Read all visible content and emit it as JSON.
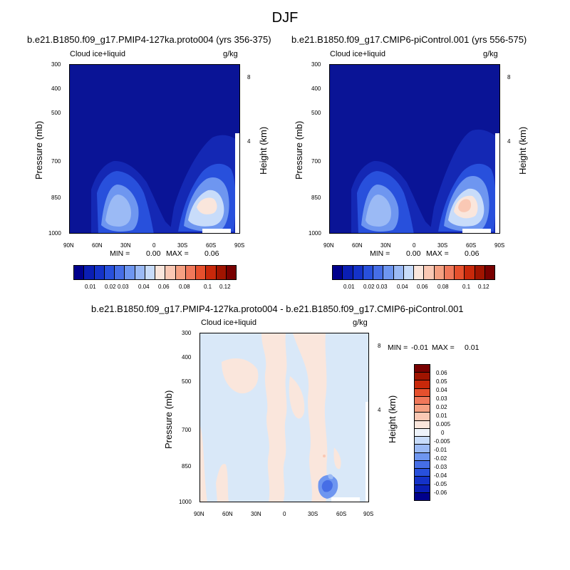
{
  "figure_title": "DJF",
  "chart_data": [
    {
      "type": "heatmap",
      "title": "b.e21.B1850.f09_g17.PMIP4-127ka.proto004 (yrs 356-375)",
      "variable": "Cloud ice+liquid",
      "units": "g/kg",
      "xlabel": "",
      "ylabel": "Pressure (mb)",
      "y2label": "Height (km)",
      "x_ticks": [
        "90N",
        "60N",
        "30N",
        "0",
        "30S",
        "60S",
        "90S"
      ],
      "y_ticks": [
        "300",
        "400",
        "500",
        "700",
        "850",
        "1000"
      ],
      "y2_ticks": [
        "8",
        "4"
      ],
      "min_label": "MIN =",
      "min_value": "0.00",
      "max_label": "MAX =",
      "max_value": "0.06",
      "colorbar_labels": [
        "0.01",
        "0.02",
        "0.03",
        "0.04",
        "0.06",
        "0.08",
        "0.1",
        "0.12"
      ]
    },
    {
      "type": "heatmap",
      "title": "b.e21.B1850.f09_g17.CMIP6-piControl.001 (yrs 556-575)",
      "variable": "Cloud ice+liquid",
      "units": "g/kg",
      "xlabel": "",
      "ylabel": "Pressure (mb)",
      "y2label": "Height (km)",
      "x_ticks": [
        "90N",
        "60N",
        "30N",
        "0",
        "30S",
        "60S",
        "90S"
      ],
      "y_ticks": [
        "300",
        "400",
        "500",
        "700",
        "850",
        "1000"
      ],
      "y2_ticks": [
        "8",
        "4"
      ],
      "min_label": "MIN =",
      "min_value": "0.00",
      "max_label": "MAX =",
      "max_value": "0.06",
      "colorbar_labels": [
        "0.01",
        "0.02",
        "0.03",
        "0.04",
        "0.06",
        "0.08",
        "0.1",
        "0.12"
      ]
    },
    {
      "type": "heatmap",
      "title": "b.e21.B1850.f09_g17.PMIP4-127ka.proto004 - b.e21.B1850.f09_g17.CMIP6-piControl.001",
      "variable": "Cloud ice+liquid",
      "units": "g/kg",
      "xlabel": "",
      "ylabel": "Pressure (mb)",
      "y2label": "Height (km)",
      "x_ticks": [
        "90N",
        "60N",
        "30N",
        "0",
        "30S",
        "60S",
        "90S"
      ],
      "y_ticks": [
        "300",
        "400",
        "500",
        "700",
        "850",
        "1000"
      ],
      "y2_ticks": [
        "8",
        "4"
      ],
      "min_label": "MIN =",
      "min_value": "-0.01",
      "max_label": "MAX =",
      "max_value": "0.01",
      "colorbar_labels": [
        "0.06",
        "0.05",
        "0.04",
        "0.03",
        "0.02",
        "0.01",
        "0.005",
        "0",
        "-0.005",
        "-0.01",
        "-0.02",
        "-0.03",
        "-0.04",
        "-0.05",
        "-0.06"
      ]
    }
  ],
  "colors": {
    "abs_bar": [
      "#00008c",
      "#0a1eb4",
      "#1432c8",
      "#2850dc",
      "#466ee6",
      "#6e96f0",
      "#9bbaf5",
      "#c8dcfa",
      "#fae6dc",
      "#fac8b4",
      "#f5a082",
      "#f0785a",
      "#e6502d",
      "#c8280a",
      "#a01400",
      "#780000"
    ],
    "diff_bar": [
      "#780000",
      "#a01400",
      "#c8280a",
      "#e6502d",
      "#f0785a",
      "#f5a082",
      "#fac8b4",
      "#fae6dc",
      "#eef3fa",
      "#c8dcfa",
      "#9bbaf5",
      "#6e96f0",
      "#466ee6",
      "#2850dc",
      "#1432c8",
      "#0a1eb4",
      "#00008c"
    ]
  }
}
